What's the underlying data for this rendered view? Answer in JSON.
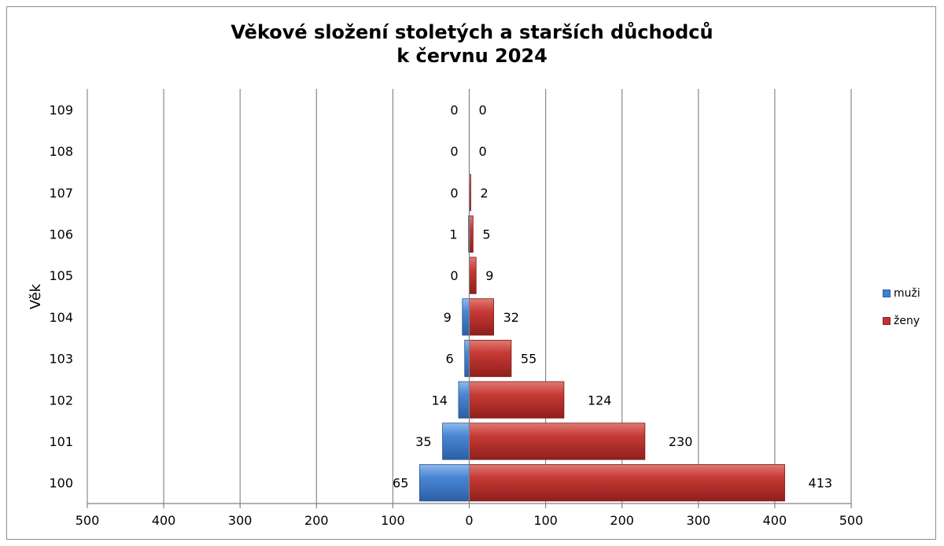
{
  "chart_data": {
    "type": "bar",
    "orientation": "horizontal",
    "title_lines": [
      "Věkové složení stoletých a starších důchodců",
      "k červnu 2024"
    ],
    "ylabel": "Věk",
    "xlabel": "",
    "categories": [
      "100",
      "101",
      "102",
      "103",
      "104",
      "105",
      "106",
      "107",
      "108",
      "109"
    ],
    "series": [
      {
        "name": "muži",
        "values": [
          65,
          35,
          14,
          6,
          9,
          0,
          1,
          0,
          0,
          0
        ],
        "direction": "left"
      },
      {
        "name": "ženy",
        "values": [
          413,
          230,
          124,
          55,
          32,
          9,
          5,
          2,
          0,
          0
        ],
        "direction": "right"
      }
    ],
    "xlim": [
      -500,
      500
    ],
    "x_tick_values": [
      -500,
      -400,
      -300,
      -200,
      -100,
      0,
      100,
      200,
      300,
      400,
      500
    ],
    "x_tick_labels": [
      "500",
      "400",
      "300",
      "200",
      "100",
      "0",
      "100",
      "200",
      "300",
      "400",
      "500"
    ],
    "grid": "vertical",
    "legend_position": "right",
    "colors": {
      "muži": "#3f7fd0",
      "ženy": "#c0322e"
    }
  }
}
